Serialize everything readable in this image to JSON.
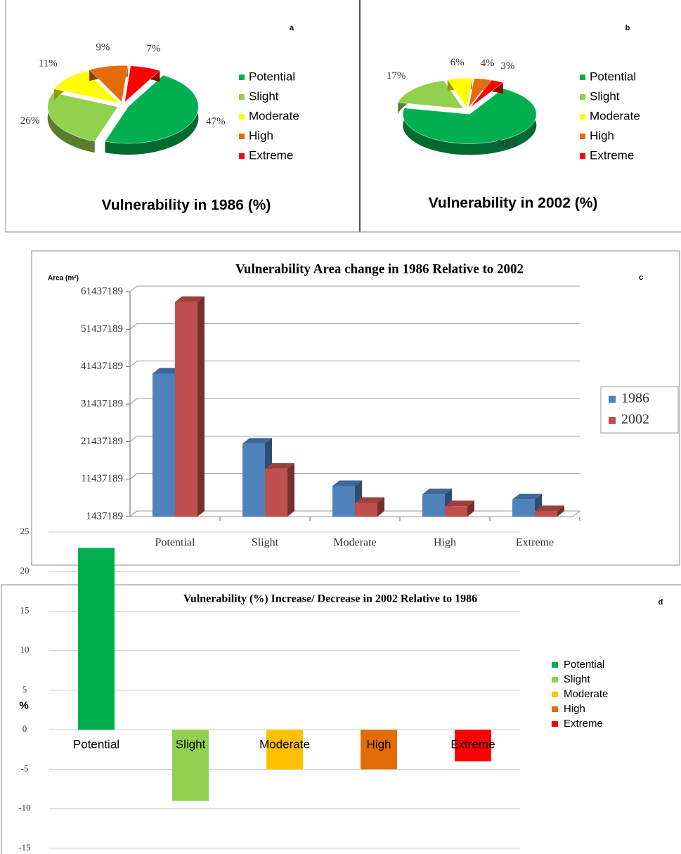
{
  "chart_data": [
    {
      "type": "pie",
      "label": "a",
      "title": "Vulnerability in 1986 (%)",
      "categories": [
        "Potential",
        "Slight",
        "Moderate",
        "High",
        "Extreme"
      ],
      "values": [
        47,
        26,
        11,
        9,
        7
      ],
      "value_labels": [
        "47%",
        "26%",
        "11%",
        "9%",
        "7%"
      ],
      "colors": [
        "#00b050",
        "#92d050",
        "#ffff00",
        "#e36c09",
        "#ff0000"
      ],
      "legend": "right"
    },
    {
      "type": "pie",
      "label": "b",
      "title": "Vulnerability in 2002 (%)",
      "categories": [
        "Potential",
        "Slight",
        "Moderate",
        "High",
        "Extreme"
      ],
      "values": [
        70,
        17,
        6,
        4,
        3
      ],
      "value_labels": [
        "70%",
        "17%",
        "6%",
        "4%",
        "3%"
      ],
      "colors": [
        "#00b050",
        "#92d050",
        "#ffff00",
        "#e36c09",
        "#ff0000"
      ],
      "legend": "right"
    },
    {
      "type": "bar3d",
      "label": "c",
      "title": "Vulnerability Area change in 1986 Relative to 2002",
      "y_label": "Area (m²)",
      "categories": [
        "Potential",
        "Slight",
        "Moderate",
        "High",
        "Extreme"
      ],
      "series": [
        {
          "name": "1986",
          "color": "#4f81bd",
          "values": [
            39600000,
            20900000,
            9600000,
            7400000,
            6000000
          ]
        },
        {
          "name": "2002",
          "color": "#c0504d",
          "values": [
            58700000,
            14200000,
            5100000,
            4200000,
            2900000
          ]
        }
      ],
      "ylim": [
        1437189,
        61437189
      ],
      "yticks": [
        1437189,
        11437189,
        21437189,
        31437189,
        41437189,
        51437189,
        61437189
      ],
      "grid": true,
      "legend": "right"
    },
    {
      "type": "bar",
      "label": "d",
      "title": "Vulnerability (%) Increase/ Decrease in 2002 Relative to 1986",
      "y_label": "%",
      "categories": [
        "Potential",
        "Slight",
        "Moderate",
        "High",
        "Extreme"
      ],
      "values": [
        23,
        -9,
        -5,
        -5,
        -4
      ],
      "colors": [
        "#00b050",
        "#92d050",
        "#ffc000",
        "#e36c09",
        "#ff0000"
      ],
      "ylim": [
        -15,
        25
      ],
      "yticks": [
        -15,
        -10,
        -5,
        0,
        5,
        10,
        15,
        20,
        25
      ],
      "grid": true,
      "legend": "right"
    }
  ]
}
